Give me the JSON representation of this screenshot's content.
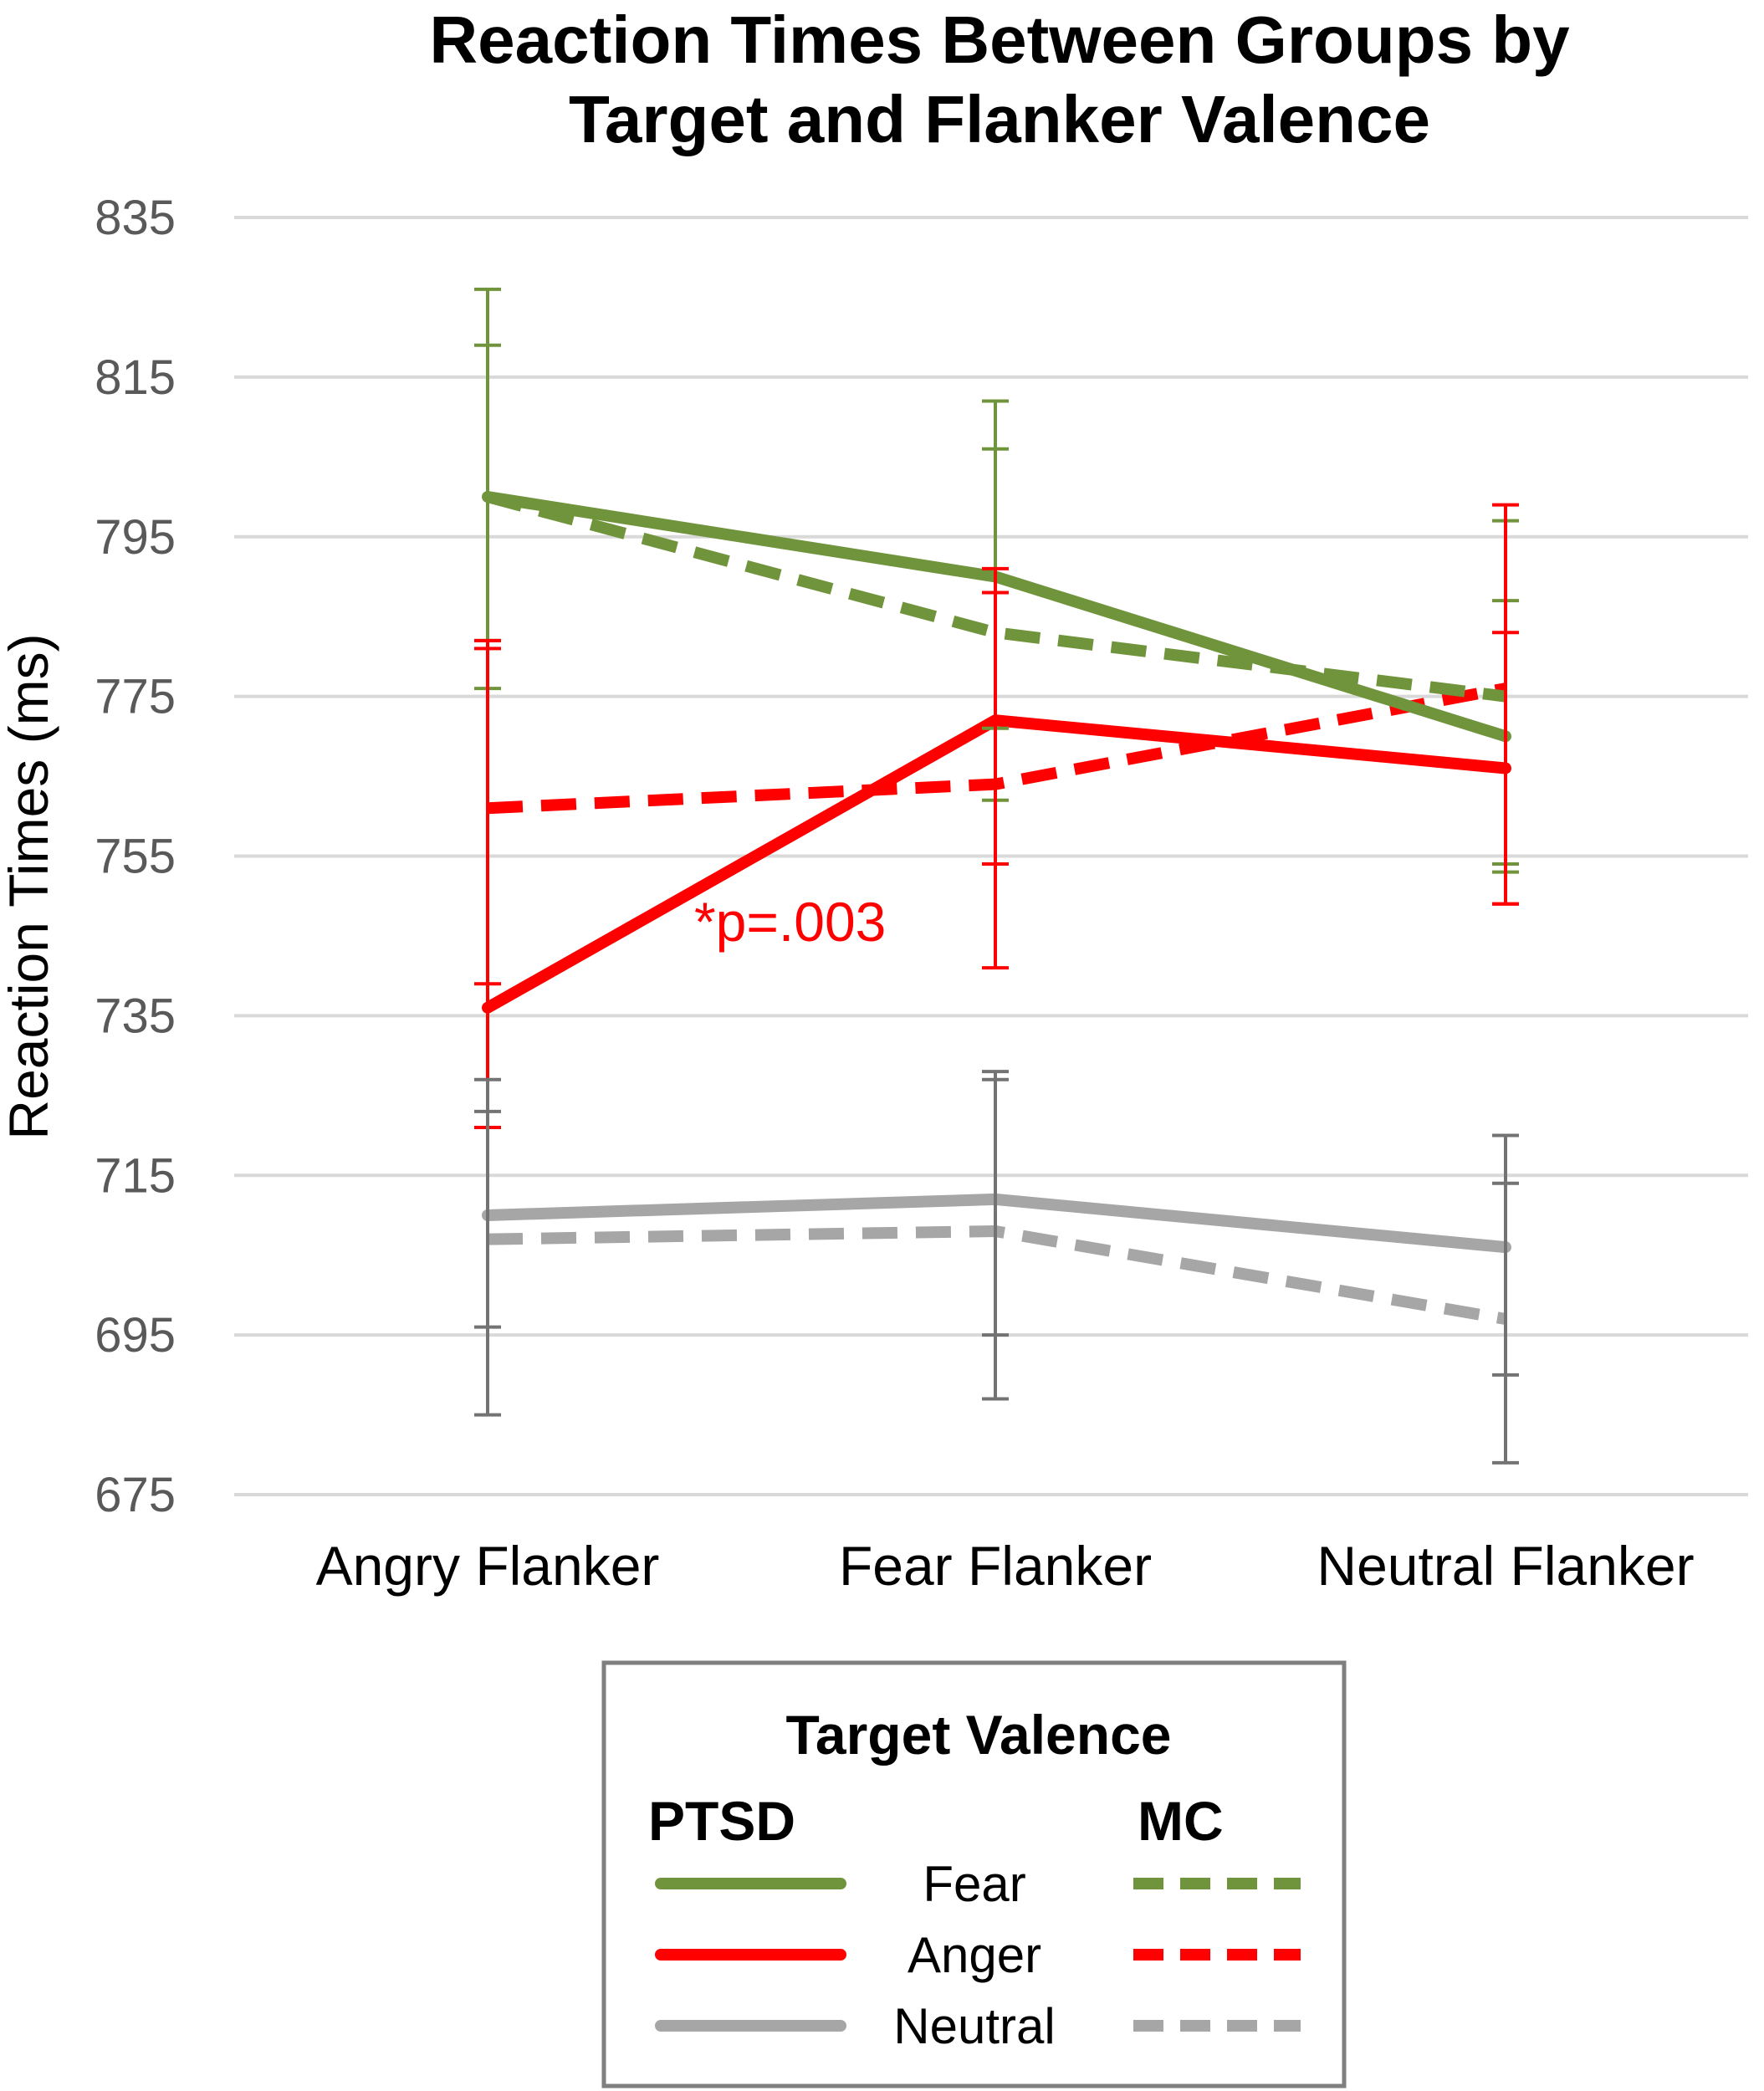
{
  "chart_data": {
    "type": "line",
    "title": "Reaction Times Between Groups by Target and Flanker Valence",
    "title_lines": [
      "Reaction Times Between Groups by",
      "Target and Flanker Valence"
    ],
    "xlabel": "",
    "ylabel": "Reaction Times (ms)",
    "categories": [
      "Angry Flanker",
      "Fear Flanker",
      "Neutral Flanker"
    ],
    "ylim": [
      675,
      835
    ],
    "yticks": [
      835,
      815,
      795,
      775,
      755,
      735,
      715,
      695,
      675
    ],
    "grid": true,
    "annotation": "*p=.003",
    "series": [
      {
        "name": "Fear",
        "group": "PTSD",
        "values": [
          800,
          790,
          770
        ],
        "err_lo": [
          776,
          762,
          754
        ],
        "err_hi": [
          826,
          812,
          787
        ],
        "color": "#70943c",
        "dash": false
      },
      {
        "name": "Fear",
        "group": "MC",
        "values": [
          800,
          783,
          775
        ],
        "err_lo": [
          782,
          771,
          753
        ],
        "err_hi": [
          819,
          806,
          797
        ],
        "color": "#70943c",
        "dash": true
      },
      {
        "name": "Anger",
        "group": "PTSD",
        "values": [
          736,
          772,
          766
        ],
        "err_lo": [
          721,
          754,
          749
        ],
        "err_hi": [
          781,
          791,
          783
        ],
        "color": "#ff0000",
        "dash": false
      },
      {
        "name": "Anger",
        "group": "MC",
        "values": [
          761,
          764,
          776
        ],
        "err_lo": [
          739,
          741,
          749
        ],
        "err_hi": [
          782,
          788,
          799
        ],
        "color": "#ff0000",
        "dash": true
      },
      {
        "name": "Neutral",
        "group": "PTSD",
        "values": [
          710,
          712,
          706
        ],
        "err_lo": [
          685,
          687,
          690
        ],
        "err_hi": [
          727,
          728,
          720
        ],
        "color": "#a6a6a6",
        "dash": false
      },
      {
        "name": "Neutral",
        "group": "MC",
        "values": [
          707,
          708,
          697
        ],
        "err_lo": [
          696,
          695,
          679
        ],
        "err_hi": [
          723,
          727,
          714
        ],
        "color": "#a6a6a6",
        "dash": true
      }
    ],
    "legend": {
      "title": "Target Valence",
      "col_left": "PTSD",
      "col_right": "MC",
      "rows": [
        {
          "label": "Fear",
          "color": "#70943c"
        },
        {
          "label": "Anger",
          "color": "#ff0000"
        },
        {
          "label": "Neutral",
          "color": "#a6a6a6"
        }
      ],
      "placement": "bottom-center"
    }
  },
  "colors": {
    "fear": "#70943c",
    "anger": "#ff0000",
    "neutral": "#a6a6a6",
    "grid": "#d9d9d9",
    "error_bar_neutral": "#737373"
  }
}
